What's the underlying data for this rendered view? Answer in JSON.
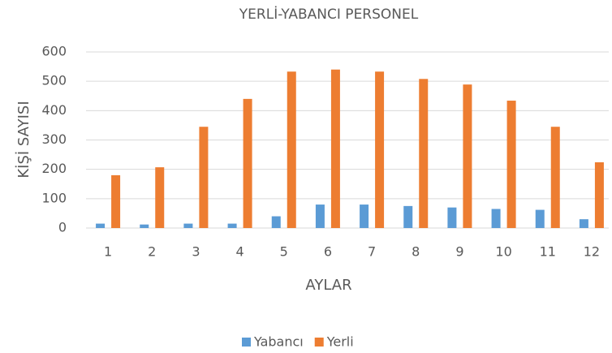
{
  "chart_data": {
    "type": "bar",
    "title": "YERLİ-YABANCI PERSONEL",
    "x_label": "AYLAR",
    "y_label": "KİŞİ SAYISI",
    "categories": [
      "1",
      "2",
      "3",
      "4",
      "5",
      "6",
      "7",
      "8",
      "9",
      "10",
      "11",
      "12"
    ],
    "series": [
      {
        "name": "Yabancı",
        "color": "#5b9bd5",
        "values": [
          15,
          12,
          15,
          15,
          40,
          80,
          80,
          75,
          70,
          65,
          62,
          30
        ]
      },
      {
        "name": "Yerli",
        "color": "#ed7d31",
        "values": [
          180,
          207,
          345,
          440,
          533,
          540,
          533,
          508,
          489,
          434,
          345,
          224
        ]
      }
    ],
    "ylim": [
      0,
      600
    ],
    "yticks": [
      0,
      100,
      200,
      300,
      400,
      500,
      600
    ],
    "grid": true,
    "legend": "bottom"
  }
}
